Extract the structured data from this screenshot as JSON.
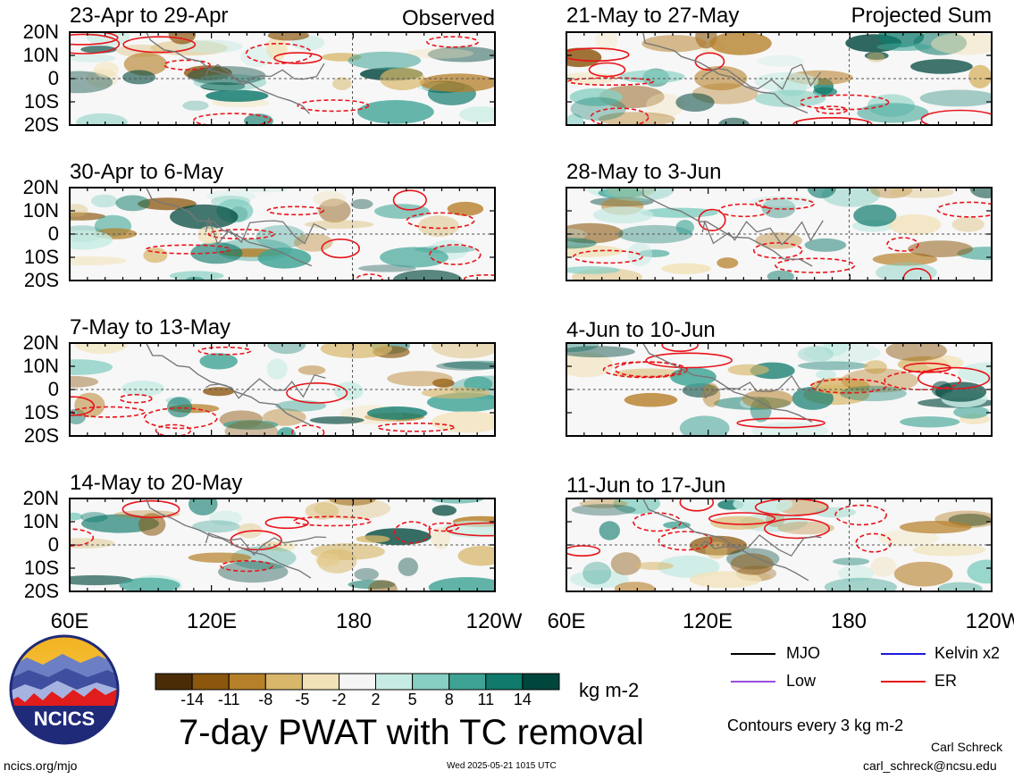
{
  "panels_observed": [
    {
      "title": "23-Apr to 29-Apr",
      "tag": "Observed"
    },
    {
      "title": "30-Apr to 6-May",
      "tag": ""
    },
    {
      "title": "7-May to 13-May",
      "tag": ""
    },
    {
      "title": "14-May to 20-May",
      "tag": ""
    }
  ],
  "panels_projected": [
    {
      "title": "21-May to 27-May",
      "tag": "Projected Sum"
    },
    {
      "title": "28-May to 3-Jun",
      "tag": ""
    },
    {
      "title": "4-Jun to 10-Jun",
      "tag": ""
    },
    {
      "title": "11-Jun to 17-Jun",
      "tag": ""
    }
  ],
  "lat_labels": [
    "20N",
    "10N",
    "0",
    "10S",
    "20S"
  ],
  "lon_labels": [
    "60E",
    "120E",
    "180",
    "120W"
  ],
  "colorbar": {
    "labels": [
      "-14",
      "-11",
      "-8",
      "-5",
      "-2",
      "2",
      "5",
      "8",
      "11",
      "14"
    ],
    "colors": [
      "#4a2d08",
      "#8b560d",
      "#b6802a",
      "#d8b76a",
      "#f2e2b8",
      "#f5f5f5",
      "#c6ebe3",
      "#86cfc2",
      "#3ea395",
      "#0f7a6c",
      "#00463c"
    ],
    "unit": "kg m-2"
  },
  "main_title": "7-day PWAT with TC removal",
  "legend": [
    {
      "label": "MJO",
      "color": "#000000"
    },
    {
      "label": "Kelvin x2",
      "color": "#1a1adc"
    },
    {
      "label": "Low",
      "color": "#9a4de0"
    },
    {
      "label": "ER",
      "color": "#e8141a"
    }
  ],
  "contour_note": "Contours every 3 kg m-2",
  "logo_text": "NCICS",
  "footer": {
    "url": "ncics.org/mjo",
    "timestamp": "Wed 2025-05-21 1015 UTC",
    "author": "Carl Schreck",
    "email": "carl_schreck@ncsu.edu"
  }
}
